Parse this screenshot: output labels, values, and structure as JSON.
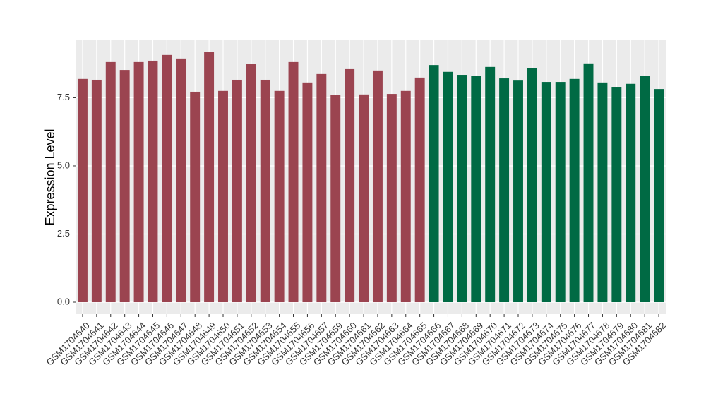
{
  "chart_data": {
    "type": "bar",
    "y_label": "Expression Level",
    "categories": [
      "GSM1704640",
      "GSM1704641",
      "GSM1704642",
      "GSM1704643",
      "GSM1704644",
      "GSM1704645",
      "GSM1704646",
      "GSM1704647",
      "GSM1704648",
      "GSM1704649",
      "GSM1704650",
      "GSM1704651",
      "GSM1704652",
      "GSM1704653",
      "GSM1704654",
      "GSM1704655",
      "GSM1704656",
      "GSM1704657",
      "GSM1704659",
      "GSM1704660",
      "GSM1704661",
      "GSM1704662",
      "GSM1704663",
      "GSM1704664",
      "GSM1704665",
      "GSM1704666",
      "GSM1704667",
      "GSM1704668",
      "GSM1704669",
      "GSM1704670",
      "GSM1704671",
      "GSM1704672",
      "GSM1704673",
      "GSM1704674",
      "GSM1704675",
      "GSM1704676",
      "GSM1704677",
      "GSM1704678",
      "GSM1704679",
      "GSM1704680",
      "GSM1704681",
      "GSM1704682"
    ],
    "values": [
      8.19,
      8.16,
      8.81,
      8.52,
      8.81,
      8.86,
      9.07,
      8.94,
      7.72,
      9.17,
      7.75,
      8.16,
      8.73,
      8.16,
      7.75,
      8.81,
      8.06,
      8.37,
      7.59,
      8.55,
      7.62,
      8.5,
      7.64,
      7.75,
      8.24,
      8.7,
      8.45,
      8.34,
      8.29,
      8.63,
      8.21,
      8.13,
      8.58,
      8.08,
      8.08,
      8.19,
      8.76,
      8.06,
      7.9,
      8.01,
      8.29,
      7.82
    ],
    "colors": [
      "#9b4450",
      "#9b4450",
      "#9b4450",
      "#9b4450",
      "#9b4450",
      "#9b4450",
      "#9b4450",
      "#9b4450",
      "#9b4450",
      "#9b4450",
      "#9b4450",
      "#9b4450",
      "#9b4450",
      "#9b4450",
      "#9b4450",
      "#9b4450",
      "#9b4450",
      "#9b4450",
      "#9b4450",
      "#9b4450",
      "#9b4450",
      "#9b4450",
      "#9b4450",
      "#9b4450",
      "#9b4450",
      "#006a44",
      "#006a44",
      "#006a44",
      "#006a44",
      "#006a44",
      "#006a44",
      "#006a44",
      "#006a44",
      "#006a44",
      "#006a44",
      "#006a44",
      "#006a44",
      "#006a44",
      "#006a44",
      "#006a44",
      "#006a44",
      "#006a44"
    ],
    "ylim": [
      -0.44,
      9.61
    ],
    "yticks": [
      {
        "value": 0,
        "label": "0.0"
      },
      2.5,
      {
        "value": 5,
        "label": "5.0"
      },
      7.5
    ],
    "grid": true
  }
}
